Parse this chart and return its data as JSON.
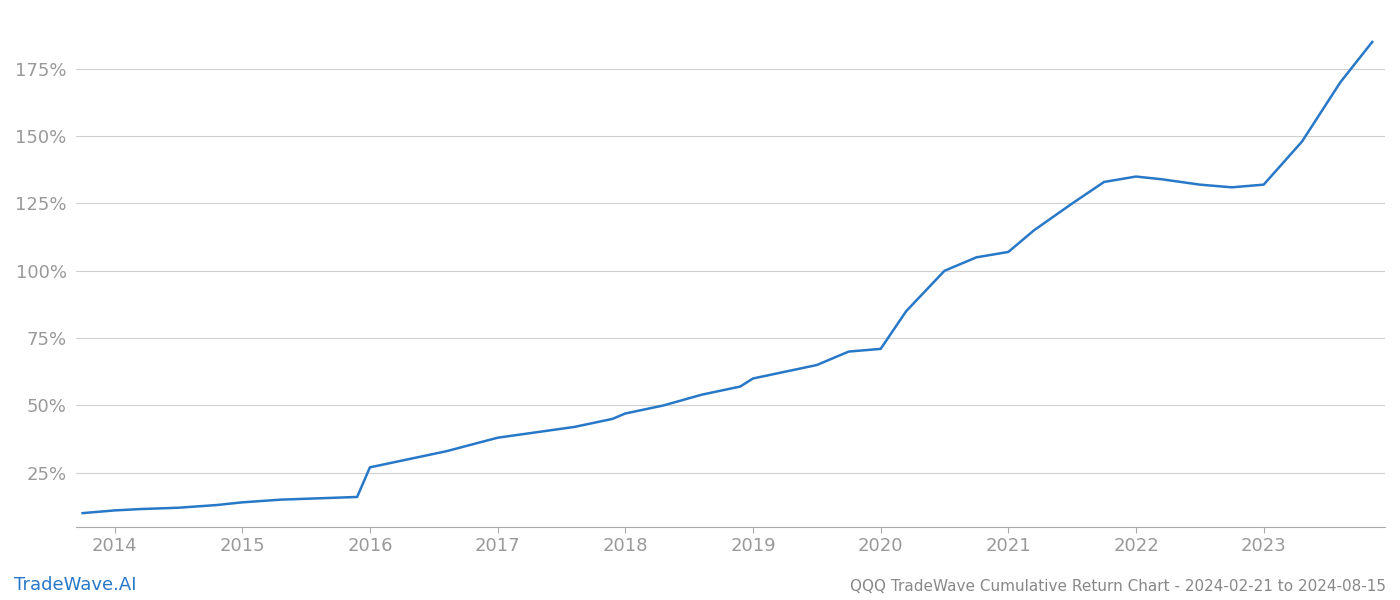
{
  "title": "QQQ TradeWave Cumulative Return Chart - 2024-02-21 to 2024-08-15",
  "watermark": "TradeWave.AI",
  "line_color": "#2878c8",
  "background_color": "#ffffff",
  "grid_color": "#d0d0d0",
  "x_years": [
    2013.75,
    2014.0,
    2014.2,
    2014.5,
    2014.8,
    2015.0,
    2015.3,
    2015.6,
    2015.9,
    2016.0,
    2016.3,
    2016.6,
    2017.0,
    2017.3,
    2017.6,
    2017.9,
    2018.0,
    2018.3,
    2018.6,
    2018.9,
    2019.0,
    2019.2,
    2019.5,
    2019.75,
    2020.0,
    2020.2,
    2020.5,
    2020.75,
    2021.0,
    2021.2,
    2021.5,
    2021.75,
    2022.0,
    2022.2,
    2022.5,
    2022.75,
    2023.0,
    2023.3,
    2023.6,
    2023.85
  ],
  "y_values": [
    10,
    11,
    11.5,
    12,
    13,
    14,
    15,
    15.5,
    16,
    27,
    30,
    33,
    38,
    40,
    42,
    45,
    47,
    50,
    54,
    57,
    60,
    62,
    65,
    70,
    71,
    85,
    100,
    105,
    107,
    115,
    125,
    133,
    135,
    134,
    132,
    131,
    132,
    148,
    170,
    185
  ],
  "ylim": [
    5,
    195
  ],
  "xlim": [
    2013.7,
    2023.95
  ],
  "yticks": [
    25,
    50,
    75,
    100,
    125,
    150,
    175
  ],
  "xticks": [
    2014,
    2015,
    2016,
    2017,
    2018,
    2019,
    2020,
    2021,
    2022,
    2023
  ],
  "line_width": 1.8,
  "title_fontsize": 11,
  "tick_fontsize": 13,
  "watermark_fontsize": 13
}
